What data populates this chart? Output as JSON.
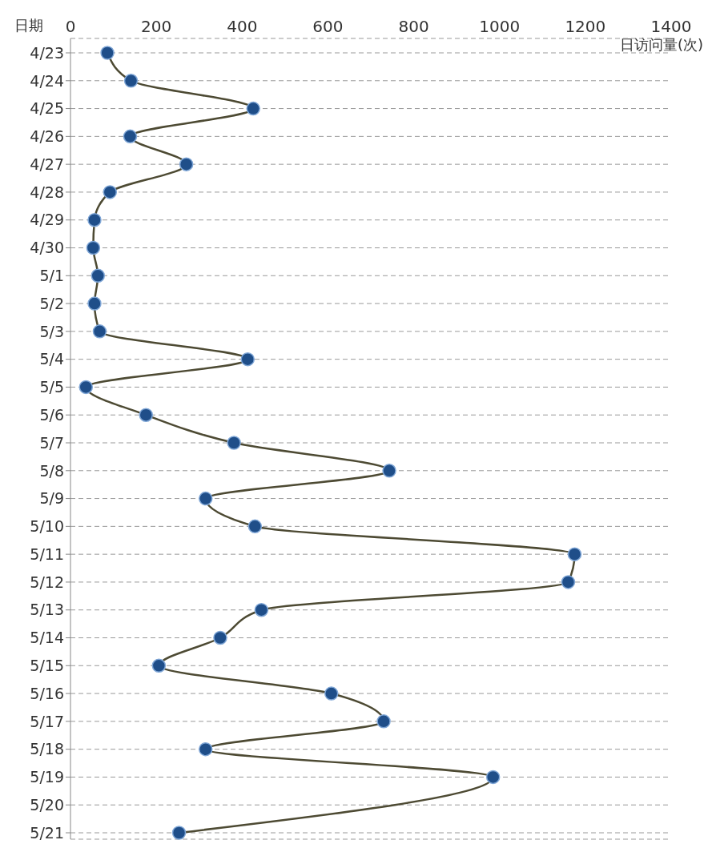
{
  "chart_data": {
    "type": "line",
    "xlabel": "日访问量(次)",
    "ylabel": "日期",
    "orientation": "horizontal",
    "categories": [
      "4/23",
      "4/24",
      "4/25",
      "4/26",
      "4/27",
      "4/28",
      "4/29",
      "4/30",
      "5/1",
      "5/2",
      "5/3",
      "5/4",
      "5/5",
      "5/6",
      "5/7",
      "5/8",
      "5/9",
      "5/10",
      "5/11",
      "5/12",
      "5/13",
      "5/14",
      "5/15",
      "5/16",
      "5/17",
      "5/18",
      "5/19",
      "5/20",
      "5/21"
    ],
    "series": [
      {
        "color": "#1f4e89",
        "values": [
          86,
          141,
          426,
          139,
          270,
          92,
          56,
          53,
          64,
          56,
          68,
          413,
          36,
          176,
          381,
          743,
          315,
          430,
          1175,
          1160,
          445,
          349,
          206,
          608,
          730,
          315,
          985,
          null,
          253
        ]
      }
    ],
    "xlim": [
      0,
      1400
    ],
    "xticks": [
      0,
      200,
      400,
      600,
      800,
      1000,
      1200,
      1400
    ],
    "grid": "y",
    "marker": "circle",
    "line_style": "solid"
  }
}
